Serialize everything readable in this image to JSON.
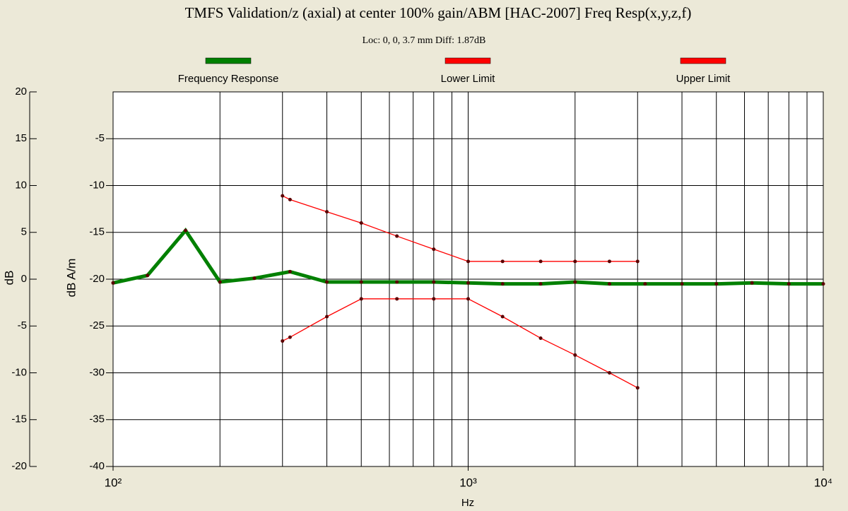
{
  "chart_data": {
    "type": "line",
    "title": "TMFS Validation/z (axial) at center 100% gain/ABM [HAC-2007] Freq Resp(x,y,z,f)",
    "subtitle": "Loc: 0, 0, 3.7 mm Diff: 1.87dB",
    "x_label": "Hz",
    "y_label": "dB",
    "y2_label": "dB A/m",
    "log_x": true,
    "xlim": [
      100,
      10000
    ],
    "xticks": [
      {
        "value": 100,
        "label": "10²"
      },
      {
        "value": 1000,
        "label": "10³"
      },
      {
        "value": 10000,
        "label": "10⁴"
      }
    ],
    "xgrid": [
      200,
      300,
      400,
      500,
      600,
      700,
      800,
      900,
      1000,
      2000,
      3000,
      4000,
      5000,
      6000,
      7000,
      8000,
      9000
    ],
    "ylim": [
      -20,
      20
    ],
    "yticks": [
      20,
      15,
      10,
      5,
      0,
      -5,
      -10,
      -15,
      -20
    ],
    "y2lim": [
      -40,
      0
    ],
    "y2ticks": [
      -5,
      -10,
      -15,
      -20,
      -25,
      -30,
      -35,
      -40
    ],
    "grid": true,
    "legend": "top",
    "marker_color": "#5a0000",
    "series": [
      {
        "name": "Frequency Response",
        "color": "#008000",
        "axis": "y2",
        "x": [
          100,
          125,
          160,
          200,
          250,
          315,
          400,
          500,
          630,
          800,
          1000,
          1250,
          1600,
          2000,
          2500,
          3150,
          4000,
          5000,
          6300,
          8000,
          10000
        ],
        "values": [
          -20.4,
          -19.6,
          -14.8,
          -20.3,
          -19.9,
          -19.2,
          -20.3,
          -20.3,
          -20.3,
          -20.3,
          -20.4,
          -20.5,
          -20.5,
          -20.3,
          -20.5,
          -20.5,
          -20.5,
          -20.5,
          -20.4,
          -20.5,
          -20.5
        ]
      },
      {
        "name": "Lower Limit",
        "color": "#ff0000",
        "x": [
          300,
          315,
          400,
          500,
          630,
          800,
          1000,
          1250,
          1600,
          2000,
          2500,
          3000
        ],
        "values": [
          -6.6,
          -6.2,
          -4.0,
          -2.1,
          -2.1,
          -2.1,
          -2.1,
          -4.0,
          -6.3,
          -8.1,
          -10.0,
          -11.6
        ]
      },
      {
        "name": "Upper Limit",
        "color": "#ff0000",
        "x": [
          300,
          315,
          400,
          500,
          630,
          800,
          1000,
          1250,
          1600,
          2000,
          2500,
          3000
        ],
        "values": [
          8.9,
          8.5,
          7.2,
          6.0,
          4.6,
          3.2,
          1.9,
          1.9,
          1.9,
          1.9,
          1.9,
          1.9
        ]
      }
    ]
  }
}
